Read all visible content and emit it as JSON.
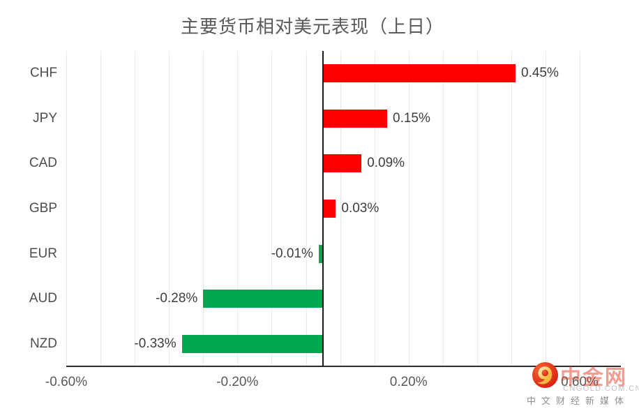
{
  "title": "主要货币相对美元表现（上日）",
  "chart_data": {
    "type": "bar",
    "orientation": "horizontal",
    "title": "主要货币相对美元表现（上日）",
    "categories": [
      "CHF",
      "JPY",
      "CAD",
      "GBP",
      "EUR",
      "AUD",
      "NZD"
    ],
    "values": [
      0.45,
      0.15,
      0.09,
      0.03,
      -0.01,
      -0.28,
      -0.33
    ],
    "value_labels": [
      "0.45%",
      "0.15%",
      "0.09%",
      "0.03%",
      "-0.01%",
      "-0.28%",
      "-0.33%"
    ],
    "unit": "%",
    "xlim": [
      -0.6,
      0.6
    ],
    "x_tick_values": [
      -0.6,
      -0.2,
      0.2,
      0.6
    ],
    "x_tick_labels": [
      "-0.60%",
      "-0.20%",
      "0.20%",
      "0.60%"
    ],
    "minor_gridline_step": 0.08,
    "grid": true,
    "legend": false,
    "colors": {
      "positive": "#fe0000",
      "negative": "#00a650",
      "gridline": "#eaeaea",
      "zero_line": "#1a1a1a",
      "axis_line": "#2b2b2b",
      "title_text": "#595959",
      "tick_text": "#595959",
      "label_text": "#3d3d3d"
    }
  },
  "watermark": {
    "brand": "中金网",
    "domain": "CNGOLD.COM.CN",
    "tagline": "中文财经新媒体",
    "brand_color": "#e23b25"
  }
}
